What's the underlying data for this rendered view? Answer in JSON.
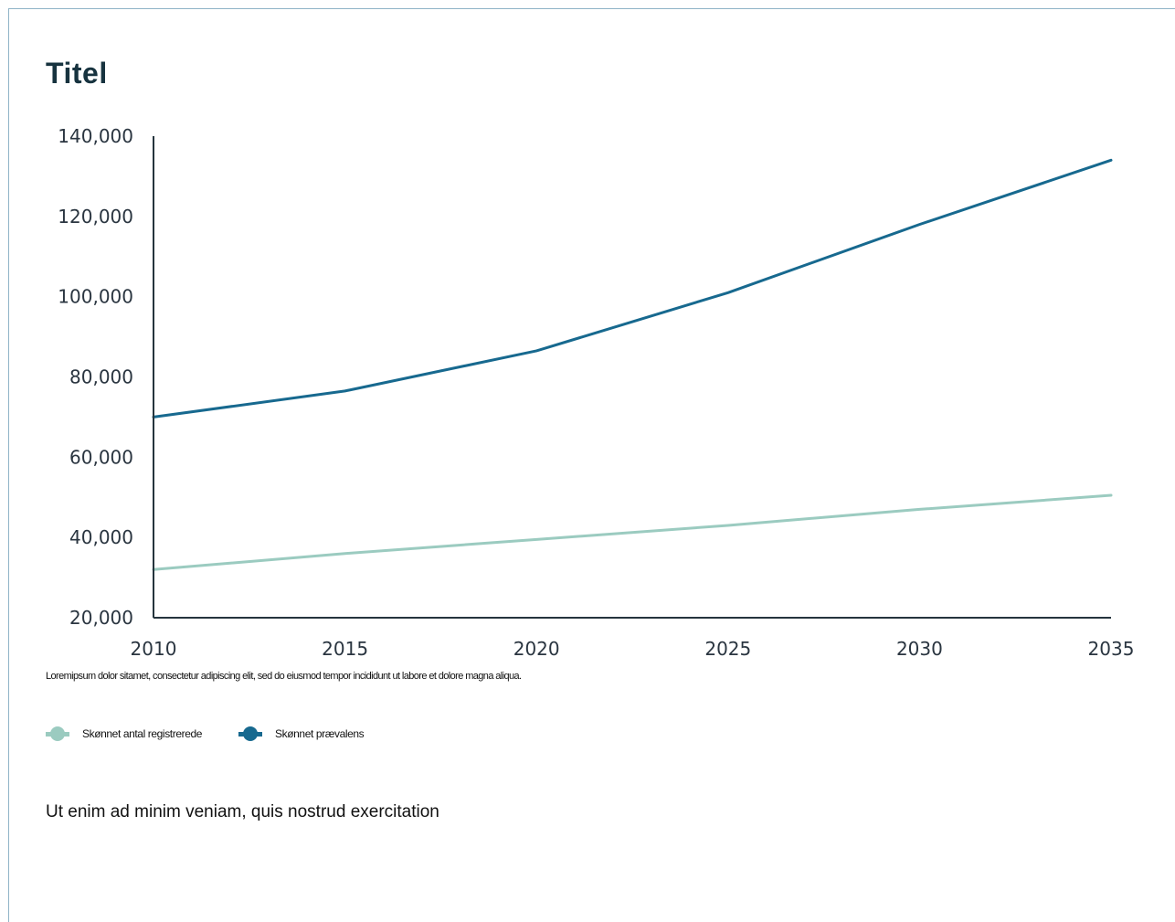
{
  "header": {
    "title": "Titel"
  },
  "caption": "Loremipsum dolor sitamet, consectetur adipiscing elit, sed do eiusmod tempor incididunt ut labore et dolore magna aliqua.",
  "note": "Ut enim ad minim veniam, quis nostrud exercitation",
  "colors": {
    "series_light": "#9bcbc0",
    "series_dark": "#17698f",
    "axis": "#25343d",
    "title": "#17333f"
  },
  "chart_data": {
    "type": "line",
    "title": "Titel",
    "xlabel": "",
    "ylabel": "",
    "x": [
      2010,
      2015,
      2020,
      2025,
      2030,
      2035
    ],
    "xlim": [
      2010,
      2035
    ],
    "ylim": [
      20000,
      140000
    ],
    "x_ticks": [
      "2010",
      "2015",
      "2020",
      "2025",
      "2030",
      "2035"
    ],
    "y_ticks": [
      "20,000",
      "40,000",
      "60,000",
      "80,000",
      "100,000",
      "120,000",
      "140,000"
    ],
    "grid": false,
    "legend_position": "bottom-left",
    "series": [
      {
        "name": "Skønnet antal registrerede",
        "values": [
          32000,
          36000,
          39500,
          43000,
          47000,
          50500
        ],
        "color": "#9bcbc0"
      },
      {
        "name": "Skønnet prævalens",
        "values": [
          70000,
          76500,
          86500,
          101000,
          118000,
          134000
        ],
        "color": "#17698f"
      }
    ]
  }
}
